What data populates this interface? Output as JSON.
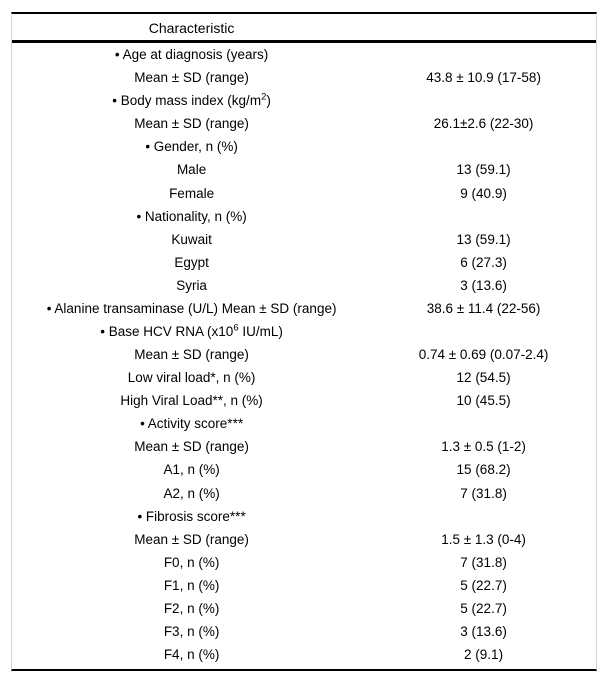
{
  "table": {
    "header": "Characteristic",
    "rows": [
      {
        "label": "• Age at diagnosis (years)",
        "value": ""
      },
      {
        "label": "Mean ± SD (range)",
        "value": "43.8 ± 10.9 (17-58)"
      },
      {
        "label": "• Body mass index (kg/m",
        "sup": "2",
        "label_after": ")",
        "value": ""
      },
      {
        "label": "Mean ± SD (range)",
        "value": "26.1±2.6 (22-30)"
      },
      {
        "label": "• Gender, n (%)",
        "value": ""
      },
      {
        "label": "Male",
        "value": "13 (59.1)"
      },
      {
        "label": "Female",
        "value": "9 (40.9)"
      },
      {
        "label": "• Nationality, n (%)",
        "value": ""
      },
      {
        "label": "Kuwait",
        "value": "13 (59.1)"
      },
      {
        "label": "Egypt",
        "value": "6 (27.3)"
      },
      {
        "label": "Syria",
        "value": "3 (13.6)"
      },
      {
        "label": "• Alanine transaminase (U/L) Mean ± SD (range)",
        "value": "38.6 ± 11.4 (22-56)"
      },
      {
        "label": "• Base HCV RNA (x10",
        "sup": "6",
        "label_after": " IU/mL)",
        "value": ""
      },
      {
        "label": "Mean ± SD (range)",
        "value": "0.74 ± 0.69 (0.07-2.4)"
      },
      {
        "label": "Low viral load*, n (%)",
        "value": "12 (54.5)"
      },
      {
        "label": "High Viral Load**, n (%)",
        "value": "10 (45.5)"
      },
      {
        "label": "• Activity score***",
        "value": ""
      },
      {
        "label": "Mean ± SD (range)",
        "value": "1.3 ± 0.5 (1-2)"
      },
      {
        "label": "A1, n (%)",
        "value": "15 (68.2)"
      },
      {
        "label": "A2, n (%)",
        "value": "7 (31.8)"
      },
      {
        "label": "• Fibrosis score***",
        "value": ""
      },
      {
        "label": "Mean ± SD (range)",
        "value": "1.5 ± 1.3 (0-4)"
      },
      {
        "label": "F0, n (%)",
        "value": "7 (31.8)"
      },
      {
        "label": "F1, n (%)",
        "value": "5 (22.7)"
      },
      {
        "label": "F2, n (%)",
        "value": "5 (22.7)"
      },
      {
        "label": "F3, n (%)",
        "value": "3 (13.6)"
      },
      {
        "label": "F4, n (%)",
        "value": "2 (9.1)"
      }
    ],
    "colors": {
      "rule": "#000000",
      "side_border": "#d4d4d4",
      "text": "#000000",
      "background": "#ffffff"
    }
  }
}
